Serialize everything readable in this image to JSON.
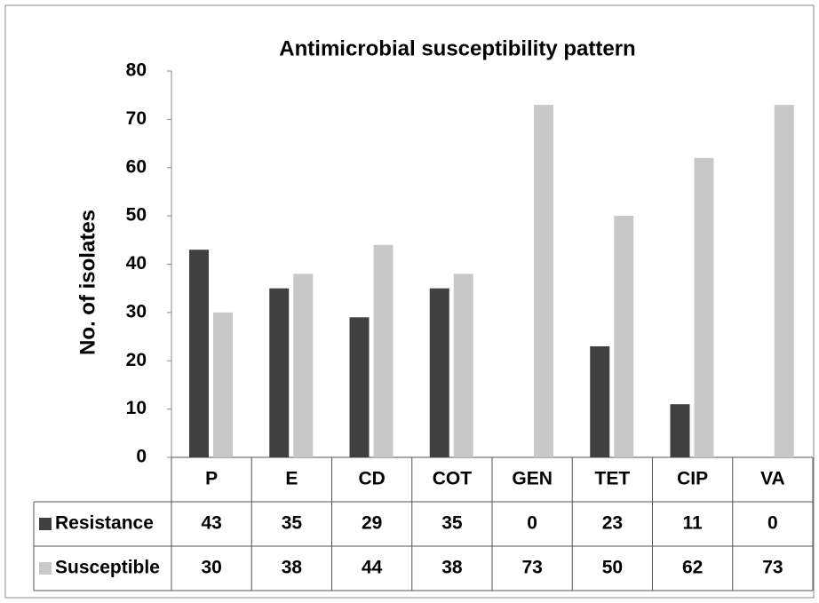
{
  "chart_data": {
    "type": "bar",
    "title": "Antimicrobial susceptibility pattern",
    "y_label": "No. of isolates",
    "categories": [
      "P",
      "E",
      "CD",
      "COT",
      "GEN",
      "TET",
      "CIP",
      "VA"
    ],
    "series": [
      {
        "name": "Resistance",
        "color": "#404040",
        "values": [
          43,
          35,
          29,
          35,
          0,
          23,
          11,
          0
        ]
      },
      {
        "name": "Susceptible",
        "color": "#c8c8c8",
        "values": [
          30,
          38,
          44,
          38,
          73,
          50,
          62,
          73
        ]
      }
    ],
    "ylim": [
      0,
      80
    ],
    "yticks": [
      0,
      10,
      20,
      30,
      40,
      50,
      60,
      70,
      80
    ],
    "grid": false
  }
}
